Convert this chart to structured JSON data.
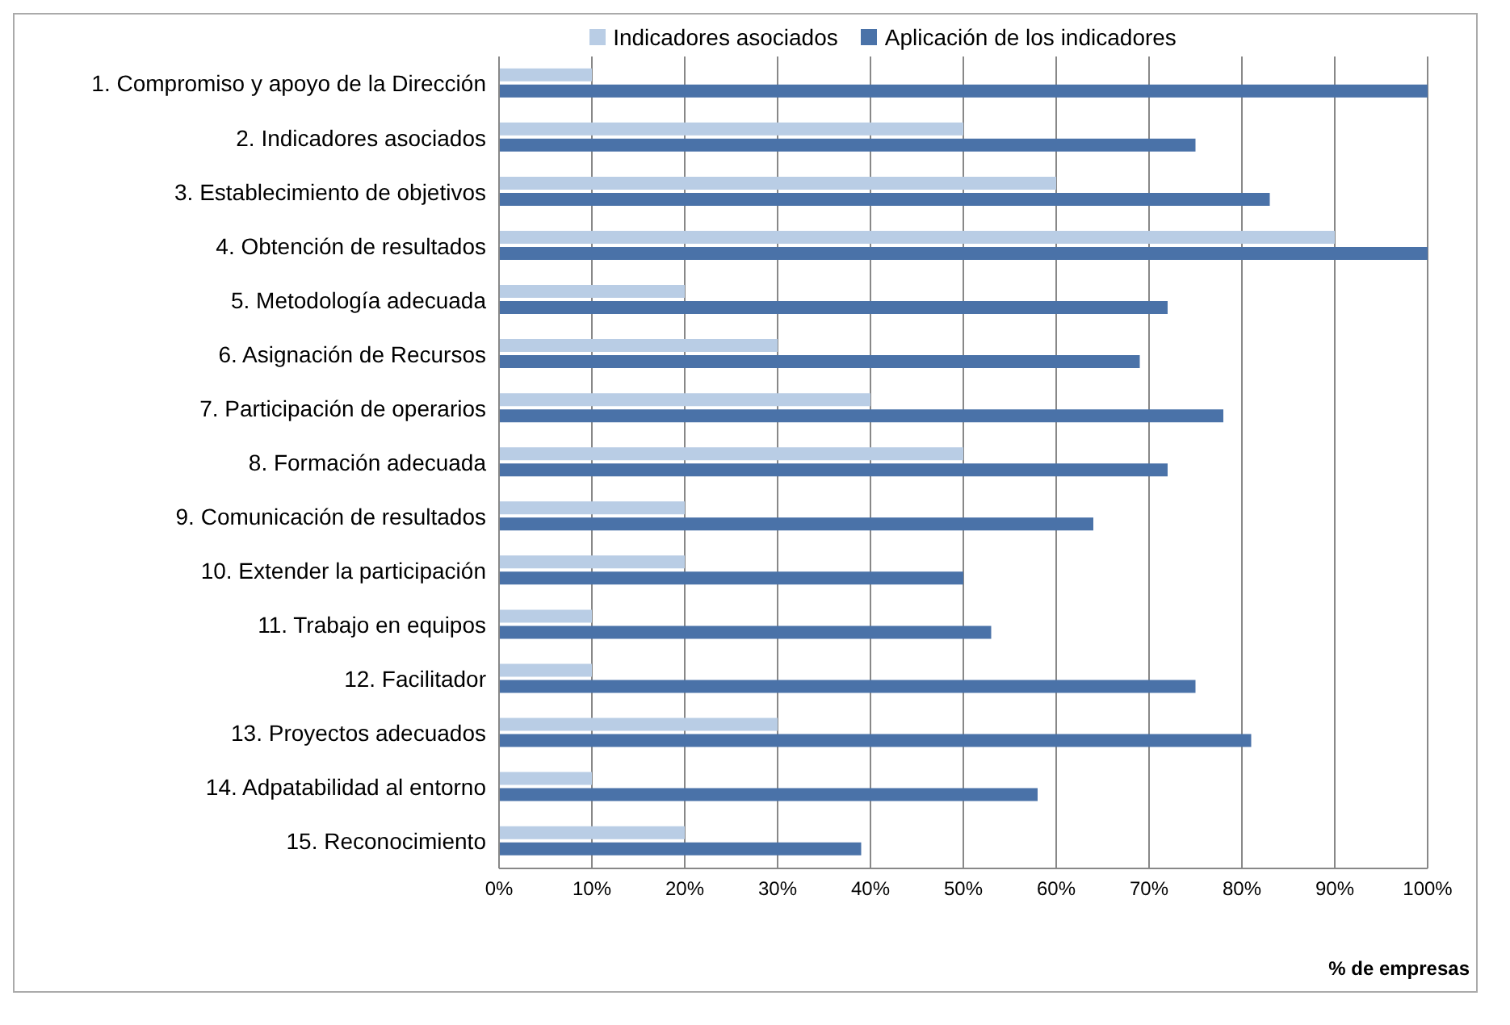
{
  "chart_data": {
    "type": "bar",
    "orientation": "horizontal",
    "categories": [
      "1. Compromiso y apoyo de la Dirección",
      "2. Indicadores asociados",
      "3. Establecimiento de objetivos",
      "4. Obtención de resultados",
      "5. Metodología adecuada",
      "6. Asignación de Recursos",
      "7. Participación de operarios",
      "8. Formación adecuada",
      "9. Comunicación de resultados",
      "10. Extender la participación",
      "11. Trabajo en equipos",
      "12. Facilitador",
      "13. Proyectos adecuados",
      "14. Adpatabilidad al entorno",
      "15. Reconocimiento"
    ],
    "series": [
      {
        "name": "Indicadores asociados",
        "color": "#b9cde5",
        "values": [
          10,
          50,
          60,
          90,
          20,
          30,
          40,
          50,
          20,
          20,
          10,
          10,
          30,
          10,
          20
        ]
      },
      {
        "name": "Aplicación de los indicadores",
        "color": "#4a72a8",
        "values": [
          100,
          75,
          83,
          100,
          72,
          69,
          78,
          72,
          64,
          50,
          53,
          75,
          81,
          58,
          39
        ]
      }
    ],
    "xlim": [
      0,
      100
    ],
    "xticks": [
      {
        "value": 0,
        "label": "0%"
      },
      {
        "value": 10,
        "label": "10%"
      },
      {
        "value": 20,
        "label": "20%"
      },
      {
        "value": 30,
        "label": "30%"
      },
      {
        "value": 40,
        "label": "40%"
      },
      {
        "value": 50,
        "label": "50%"
      },
      {
        "value": 60,
        "label": "60%"
      },
      {
        "value": 70,
        "label": "70%"
      },
      {
        "value": 80,
        "label": "80%"
      },
      {
        "value": 90,
        "label": "90%"
      },
      {
        "value": 100,
        "label": "100%"
      }
    ],
    "xlabel": "% de empresas",
    "grid": "x",
    "legend": "top"
  }
}
